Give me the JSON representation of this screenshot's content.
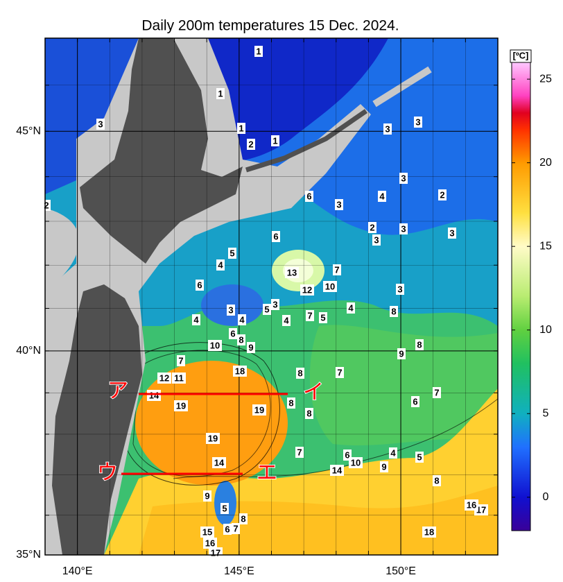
{
  "title": "Daily 200m temperatures 15 Dec. 2024.",
  "map": {
    "xlim": [
      139,
      153
    ],
    "ylim": [
      35,
      47
    ],
    "xticks": [
      {
        "value": 140,
        "label": "140°E"
      },
      {
        "value": 145,
        "label": "145°E"
      },
      {
        "value": 150,
        "label": "150°E"
      }
    ],
    "yticks": [
      {
        "value": 35,
        "label": "35°N"
      },
      {
        "value": 40,
        "label": "40°N"
      },
      {
        "value": 45,
        "label": "45°N"
      }
    ],
    "xminor": [
      140,
      141,
      142,
      143,
      144,
      145,
      146,
      147,
      148,
      149,
      150,
      151,
      152
    ],
    "yminor": [
      36,
      37,
      38,
      39,
      40,
      41,
      42,
      43,
      44,
      45,
      46
    ]
  },
  "colorbar": {
    "unit": "[ºC]",
    "lim": [
      -2,
      26
    ],
    "ticks": [
      0,
      5,
      10,
      15,
      20,
      25
    ],
    "stops": [
      {
        "value": -2,
        "color": "#3a0098"
      },
      {
        "value": 0,
        "color": "#1010d0"
      },
      {
        "value": 3,
        "color": "#2070ff"
      },
      {
        "value": 5,
        "color": "#10b0c0"
      },
      {
        "value": 8,
        "color": "#20c060"
      },
      {
        "value": 10,
        "color": "#60d040"
      },
      {
        "value": 12,
        "color": "#b8ec70"
      },
      {
        "value": 15,
        "color": "#fffbc8"
      },
      {
        "value": 17,
        "color": "#ffe040"
      },
      {
        "value": 20,
        "color": "#ff9a00"
      },
      {
        "value": 22,
        "color": "#ff3000"
      },
      {
        "value": 23,
        "color": "#e00020"
      },
      {
        "value": 24,
        "color": "#ff40c0"
      },
      {
        "value": 26,
        "color": "#ffc8ff"
      }
    ]
  },
  "contour_labels": [
    1,
    1,
    1,
    2,
    1,
    3,
    3,
    3,
    2,
    6,
    3,
    4,
    3,
    2,
    2,
    3,
    3,
    3,
    6,
    5,
    4,
    13,
    7,
    12,
    10,
    6,
    3,
    3,
    5,
    3,
    4,
    8,
    7,
    5,
    4,
    4,
    4,
    6,
    8,
    10,
    9,
    8,
    9,
    7,
    18,
    8,
    7,
    12,
    11,
    14,
    19,
    19,
    8,
    8,
    6,
    7,
    19,
    7,
    6,
    10,
    14,
    4,
    5,
    9,
    14,
    8,
    9,
    5,
    8,
    6,
    7,
    15,
    16,
    17,
    18,
    17,
    16
  ],
  "sections": [
    {
      "start": "ア",
      "end": "イ"
    },
    {
      "start": "ウ",
      "end": "エ"
    }
  ]
}
